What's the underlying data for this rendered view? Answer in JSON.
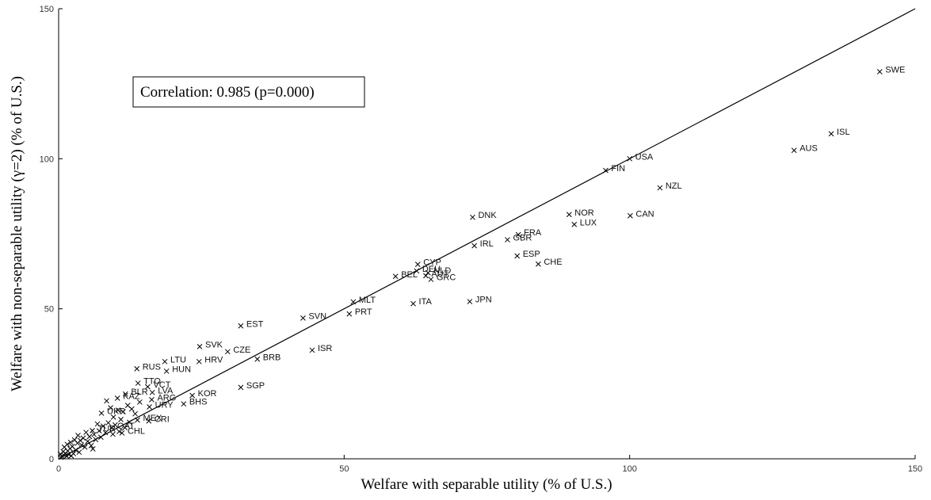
{
  "chart_data": {
    "type": "scatter",
    "xlabel": "Welfare with separable utility (% of U.S.)",
    "ylabel": "Welfare with non-separable utility (γ=2) (% of U.S.)",
    "xlim": [
      0,
      150
    ],
    "ylim": [
      0,
      150
    ],
    "xticks": [
      0,
      50,
      100,
      150
    ],
    "yticks": [
      0,
      50,
      100,
      150
    ],
    "annotation": "Correlation: 0.985 (p=0.000)",
    "reference_line": "45-degree",
    "grid": false,
    "points": [
      {
        "label": "SWE",
        "x": 143.8,
        "y": 129.0
      },
      {
        "label": "ISL",
        "x": 135.3,
        "y": 108.3
      },
      {
        "label": "AUS",
        "x": 128.8,
        "y": 102.8
      },
      {
        "label": "USA",
        "x": 100.0,
        "y": 100.0
      },
      {
        "label": "FIN",
        "x": 95.8,
        "y": 96.1
      },
      {
        "label": "NZL",
        "x": 105.3,
        "y": 90.3
      },
      {
        "label": "CAN",
        "x": 100.1,
        "y": 81.0
      },
      {
        "label": "NOR",
        "x": 89.4,
        "y": 81.4
      },
      {
        "label": "LUX",
        "x": 90.3,
        "y": 78.1
      },
      {
        "label": "DNK",
        "x": 72.5,
        "y": 80.5
      },
      {
        "label": "FRA",
        "x": 80.5,
        "y": 74.7
      },
      {
        "label": "GBR",
        "x": 78.6,
        "y": 73.0
      },
      {
        "label": "ESP",
        "x": 80.3,
        "y": 67.6
      },
      {
        "label": "CHE",
        "x": 84.0,
        "y": 64.9
      },
      {
        "label": "IRL",
        "x": 72.8,
        "y": 71.0
      },
      {
        "label": "CYP",
        "x": 62.9,
        "y": 64.8
      },
      {
        "label": "DEU",
        "x": 62.7,
        "y": 62.6
      },
      {
        "label": "NLD",
        "x": 64.7,
        "y": 62.0
      },
      {
        "label": "AUT",
        "x": 64.3,
        "y": 61.0
      },
      {
        "label": "GRC",
        "x": 65.2,
        "y": 59.8
      },
      {
        "label": "BEL",
        "x": 59.0,
        "y": 60.8
      },
      {
        "label": "MLT",
        "x": 51.6,
        "y": 52.3
      },
      {
        "label": "PRT",
        "x": 50.9,
        "y": 48.3
      },
      {
        "label": "ITA",
        "x": 62.1,
        "y": 51.7
      },
      {
        "label": "JPN",
        "x": 72.0,
        "y": 52.4
      },
      {
        "label": "SVN",
        "x": 42.8,
        "y": 46.9
      },
      {
        "label": "EST",
        "x": 31.9,
        "y": 44.3
      },
      {
        "label": "ISR",
        "x": 44.4,
        "y": 36.2
      },
      {
        "label": "SVK",
        "x": 24.7,
        "y": 37.4
      },
      {
        "label": "CZE",
        "x": 29.6,
        "y": 35.7
      },
      {
        "label": "BRB",
        "x": 34.8,
        "y": 33.2
      },
      {
        "label": "HRV",
        "x": 24.6,
        "y": 32.4
      },
      {
        "label": "LTU",
        "x": 18.6,
        "y": 32.4
      },
      {
        "label": "HUN",
        "x": 18.9,
        "y": 29.2
      },
      {
        "label": "RUS",
        "x": 13.7,
        "y": 30.0
      },
      {
        "label": "TTO",
        "x": 13.9,
        "y": 25.2
      },
      {
        "label": "VCT",
        "x": 15.6,
        "y": 24.0
      },
      {
        "label": "LVA",
        "x": 16.4,
        "y": 22.1
      },
      {
        "label": "BLR",
        "x": 11.7,
        "y": 21.6
      },
      {
        "label": "KAZ",
        "x": 10.3,
        "y": 20.2
      },
      {
        "label": "ARG",
        "x": 16.3,
        "y": 19.7
      },
      {
        "label": "URY",
        "x": 15.9,
        "y": 17.3
      },
      {
        "label": "KOR",
        "x": 23.4,
        "y": 21.1
      },
      {
        "label": "BHS",
        "x": 21.9,
        "y": 18.3
      },
      {
        "label": "SGP",
        "x": 31.9,
        "y": 23.8
      },
      {
        "label": "UKR",
        "x": 7.5,
        "y": 15.2
      },
      {
        "label": "CRI",
        "x": 15.8,
        "y": 12.6
      },
      {
        "label": "MEX",
        "x": 13.8,
        "y": 12.9
      },
      {
        "label": "CHL",
        "x": 11.1,
        "y": 8.6
      },
      {
        "label": "QAT",
        "x": 9.3,
        "y": 10.3
      },
      {
        "label": "TUR",
        "x": 5.9,
        "y": 9.4
      },
      {
        "label": "",
        "x": 8.4,
        "y": 19.3
      },
      {
        "label": "",
        "x": 9.1,
        "y": 17.0
      },
      {
        "label": "",
        "x": 10.4,
        "y": 16.2
      },
      {
        "label": "",
        "x": 11.3,
        "y": 15.7
      },
      {
        "label": "",
        "x": 12.1,
        "y": 17.8
      },
      {
        "label": "",
        "x": 12.8,
        "y": 16.6
      },
      {
        "label": "",
        "x": 13.4,
        "y": 15.0
      },
      {
        "label": "",
        "x": 14.2,
        "y": 18.9
      },
      {
        "label": "",
        "x": 9.6,
        "y": 13.9
      },
      {
        "label": "",
        "x": 10.9,
        "y": 13.1
      },
      {
        "label": "",
        "x": 12.4,
        "y": 12.2
      },
      {
        "label": "",
        "x": 8.7,
        "y": 12.0
      },
      {
        "label": "",
        "x": 7.8,
        "y": 10.9
      },
      {
        "label": "",
        "x": 9.9,
        "y": 11.3
      },
      {
        "label": "",
        "x": 11.6,
        "y": 10.4
      },
      {
        "label": "",
        "x": 6.8,
        "y": 11.6
      },
      {
        "label": "",
        "x": 6.2,
        "y": 8.1
      },
      {
        "label": "",
        "x": 7.1,
        "y": 9.3
      },
      {
        "label": "",
        "x": 8.2,
        "y": 8.7
      },
      {
        "label": "",
        "x": 9.5,
        "y": 8.2
      },
      {
        "label": "",
        "x": 10.6,
        "y": 9.1
      },
      {
        "label": "",
        "x": 5.4,
        "y": 7.4
      },
      {
        "label": "",
        "x": 4.8,
        "y": 8.8
      },
      {
        "label": "",
        "x": 4.3,
        "y": 6.9
      },
      {
        "label": "",
        "x": 5.1,
        "y": 5.8
      },
      {
        "label": "",
        "x": 6.5,
        "y": 6.4
      },
      {
        "label": "",
        "x": 7.4,
        "y": 7.2
      },
      {
        "label": "",
        "x": 3.8,
        "y": 6.1
      },
      {
        "label": "",
        "x": 3.3,
        "y": 5.2
      },
      {
        "label": "",
        "x": 2.8,
        "y": 6.3
      },
      {
        "label": "",
        "x": 4.0,
        "y": 4.6
      },
      {
        "label": "",
        "x": 4.6,
        "y": 3.9
      },
      {
        "label": "",
        "x": 5.7,
        "y": 4.4
      },
      {
        "label": "",
        "x": 6.0,
        "y": 3.3
      },
      {
        "label": "",
        "x": 2.4,
        "y": 4.1
      },
      {
        "label": "",
        "x": 2.0,
        "y": 3.4
      },
      {
        "label": "",
        "x": 1.6,
        "y": 2.6
      },
      {
        "label": "",
        "x": 3.0,
        "y": 2.9
      },
      {
        "label": "",
        "x": 3.6,
        "y": 2.2
      },
      {
        "label": "",
        "x": 1.2,
        "y": 1.8
      },
      {
        "label": "",
        "x": 0.9,
        "y": 1.2
      },
      {
        "label": "",
        "x": 1.8,
        "y": 1.4
      },
      {
        "label": "",
        "x": 2.6,
        "y": 1.7
      },
      {
        "label": "",
        "x": 0.6,
        "y": 0.8
      },
      {
        "label": "",
        "x": 0.4,
        "y": 0.5
      },
      {
        "label": "",
        "x": 1.4,
        "y": 0.9
      },
      {
        "label": "",
        "x": 2.2,
        "y": 1.0
      },
      {
        "label": "",
        "x": 0.8,
        "y": 2.4
      },
      {
        "label": "",
        "x": 1.0,
        "y": 3.9
      },
      {
        "label": "",
        "x": 1.5,
        "y": 4.8
      },
      {
        "label": "",
        "x": 2.1,
        "y": 5.5
      },
      {
        "label": "",
        "x": 3.4,
        "y": 7.8
      },
      {
        "label": "",
        "x": 0.3,
        "y": 1.6
      }
    ]
  }
}
